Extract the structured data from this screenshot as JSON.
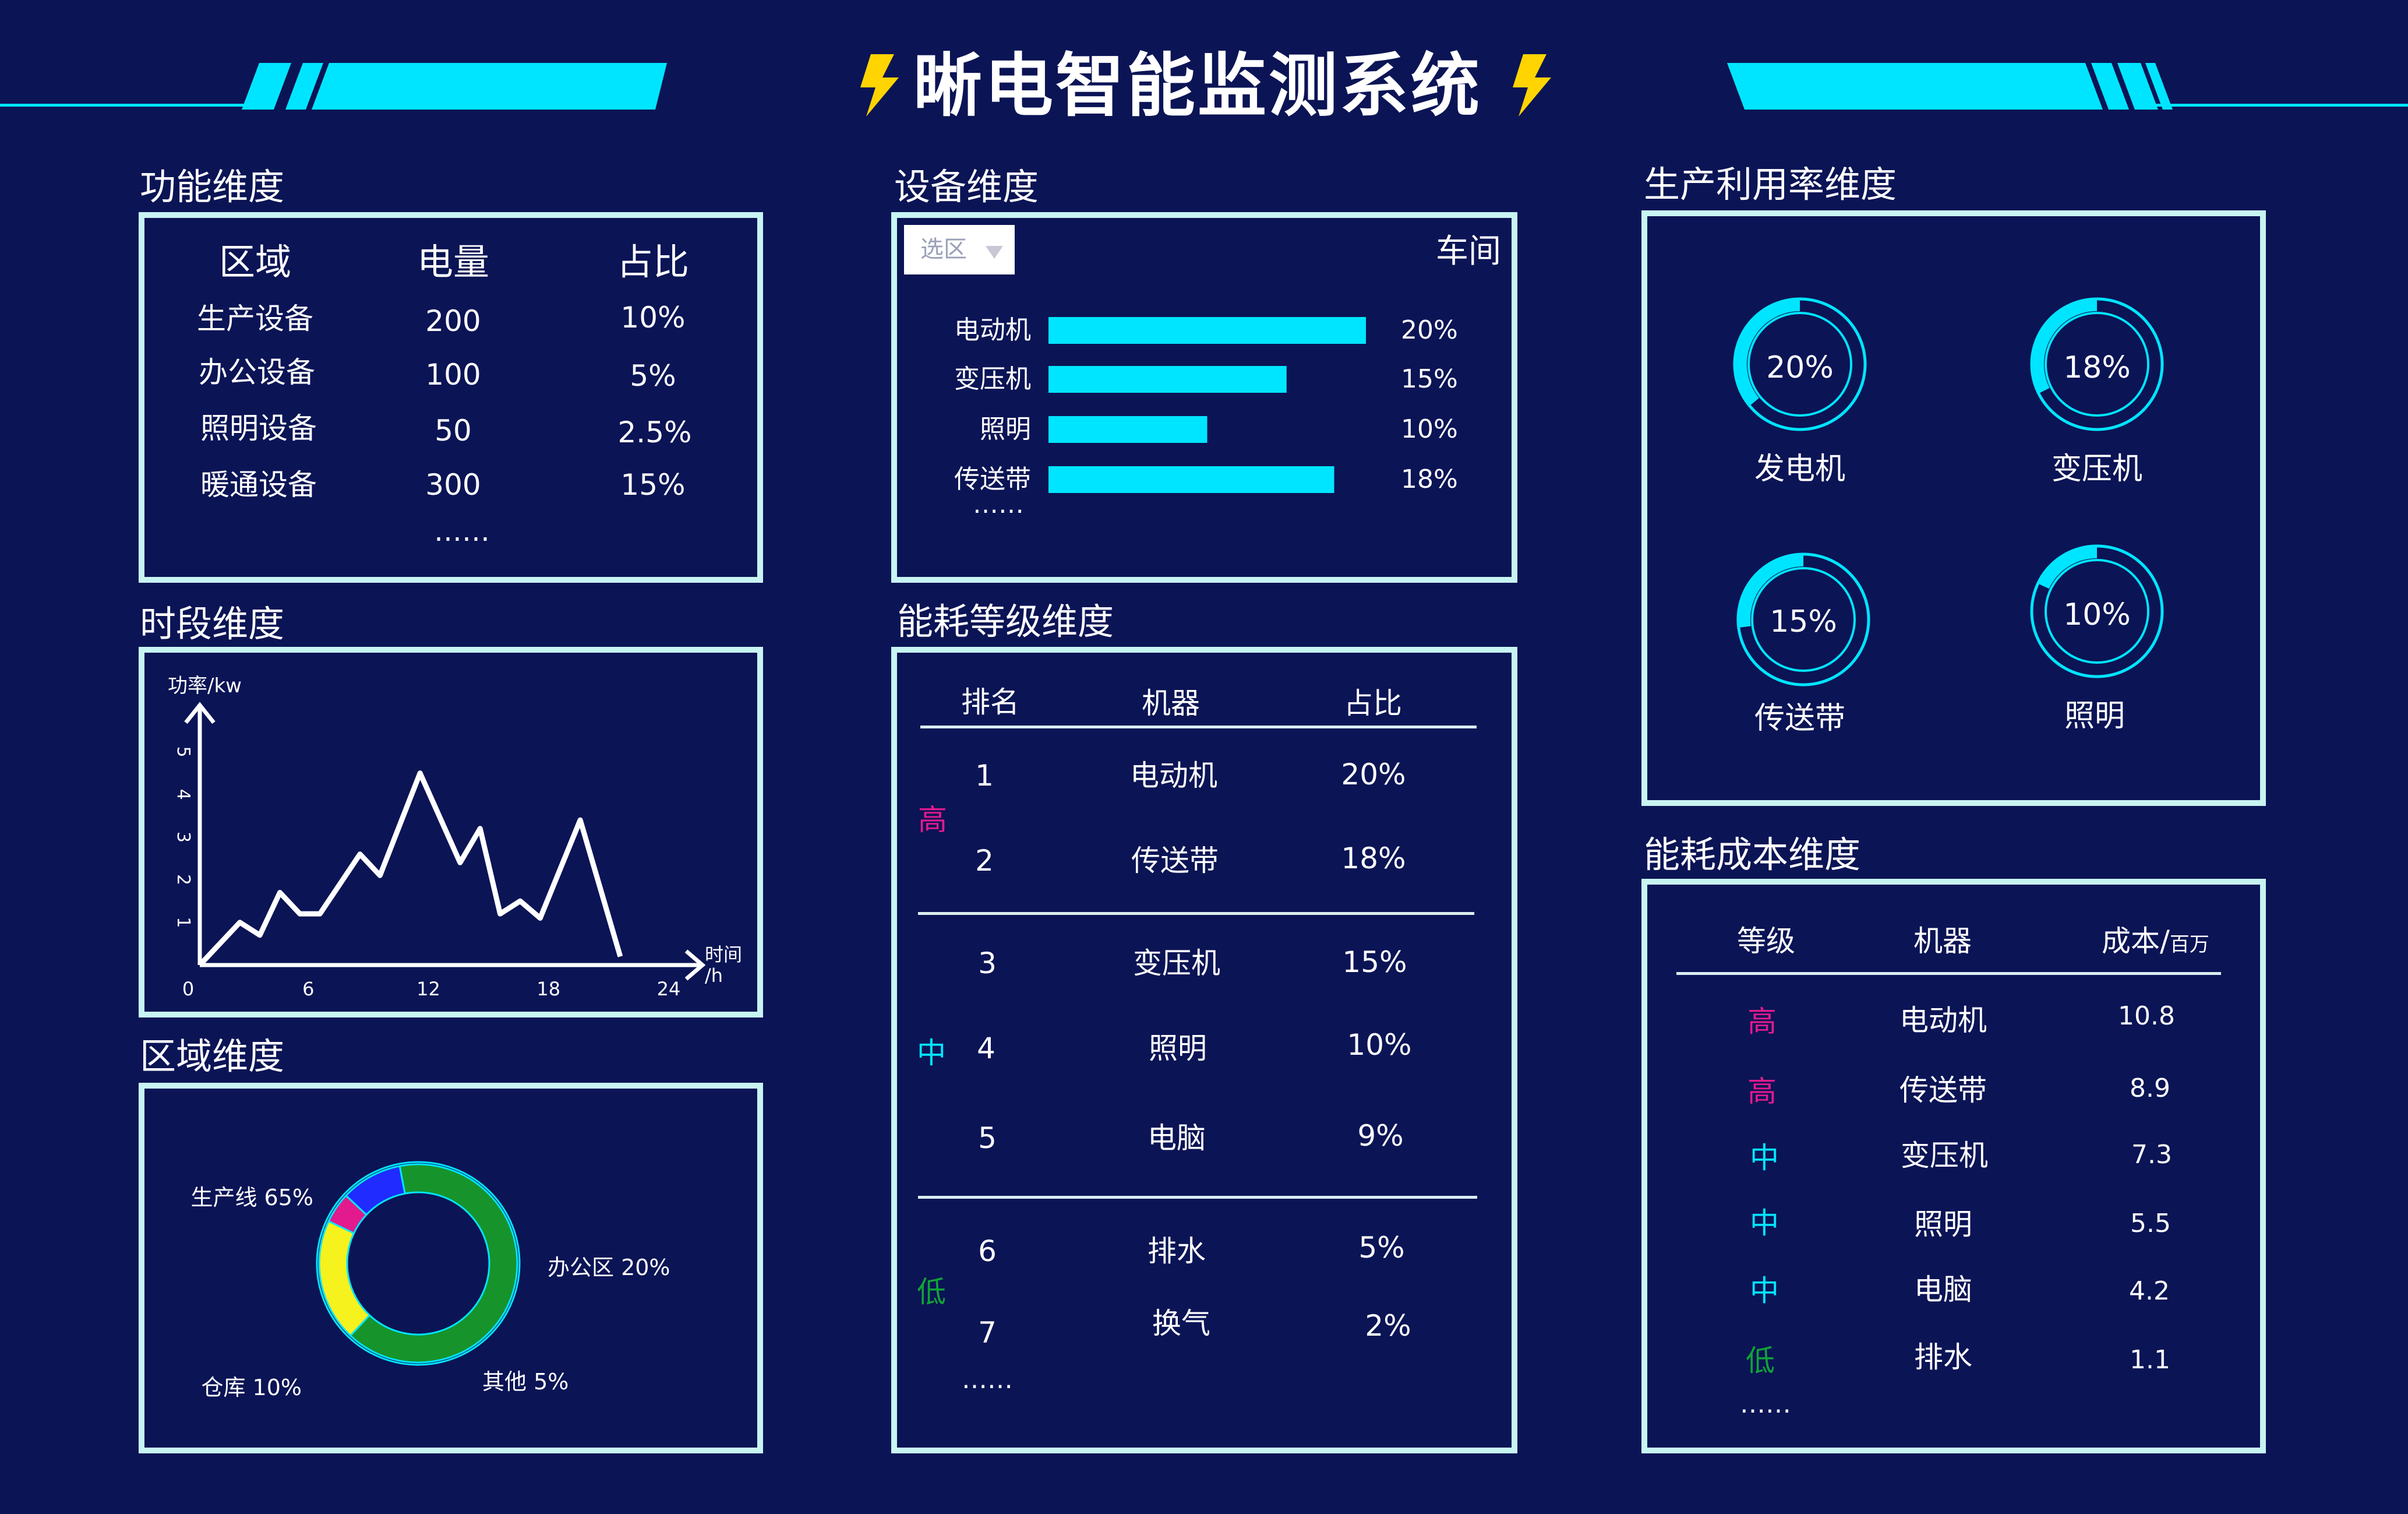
{
  "header": {
    "title": "晰电智能监测系统",
    "accent_color": "#00e5ff",
    "bolt_color": "#ffd400"
  },
  "function_dim": {
    "title": "功能维度",
    "headers": [
      "区域",
      "电量",
      "占比"
    ],
    "rows": [
      [
        "生产设备",
        "200",
        "10%"
      ],
      [
        "办公设备",
        "100",
        "5%"
      ],
      [
        "照明设备",
        "50",
        "2.5%"
      ],
      [
        "暖通设备",
        "300",
        "15%"
      ]
    ],
    "ellipsis": "……"
  },
  "device_dim": {
    "title": "设备维度",
    "select_label": "选区",
    "workshop_label": "车间",
    "ellipsis": "……",
    "bar_color": "#00e5ff"
  },
  "time_dim": {
    "title": "时段维度",
    "ylabel": "功率/kw",
    "xlabel_line1": "时间",
    "xlabel_line2": "/h"
  },
  "region_dim": {
    "title": "区域维度"
  },
  "energy_level_dim": {
    "title": "能耗等级维度",
    "headers": [
      "排名",
      "机器",
      "占比"
    ],
    "rows": [
      [
        "1",
        "电动机",
        "20%"
      ],
      [
        "2",
        "传送带",
        "18%"
      ],
      [
        "3",
        "变压机",
        "15%"
      ],
      [
        "4",
        "照明",
        "10%"
      ],
      [
        "5",
        "电脑",
        "9%"
      ],
      [
        "6",
        "排水",
        "5%"
      ],
      [
        "7",
        "换气",
        "2%"
      ]
    ],
    "levels": [
      "高",
      "中",
      "低"
    ],
    "ellipsis": "……"
  },
  "utilization_dim": {
    "title": "生产利用率维度",
    "gauges": [
      {
        "label": "发电机",
        "value": "20%",
        "fraction": 0.2
      },
      {
        "label": "变压机",
        "value": "18%",
        "fraction": 0.18
      },
      {
        "label": "传送带",
        "value": "15%",
        "fraction": 0.15
      },
      {
        "label": "照明",
        "value": "10%",
        "fraction": 0.1
      }
    ]
  },
  "cost_dim": {
    "title": "能耗成本维度",
    "headers": [
      "等级",
      "机器",
      "成本/"
    ],
    "unit_small": "百万",
    "rows": [
      [
        "高",
        "电动机",
        "10.8"
      ],
      [
        "高",
        "传送带",
        "8.9"
      ],
      [
        "中",
        "变压机",
        "7.3"
      ],
      [
        "中",
        "照明",
        "5.5"
      ],
      [
        "中",
        "电脑",
        "4.2"
      ],
      [
        "低",
        "排水",
        "1.1"
      ]
    ],
    "ellipsis": "……",
    "level_colors": {
      "高": "#e21a8e",
      "中": "#00e5ff",
      "低": "#10a337"
    }
  },
  "chart_data": [
    {
      "type": "bar",
      "orientation": "horizontal",
      "categories": [
        "电动机",
        "变压机",
        "照明",
        "传送带"
      ],
      "values": [
        20,
        15,
        10,
        18
      ],
      "value_labels": [
        "20%",
        "15%",
        "10%",
        "18%"
      ],
      "xlim": [
        0,
        20
      ]
    },
    {
      "type": "line",
      "x": [
        0,
        2,
        3,
        4,
        5,
        6,
        8,
        9,
        11,
        13,
        14,
        15,
        16,
        17,
        19,
        21
      ],
      "y": [
        0,
        1.0,
        0.7,
        1.7,
        1.2,
        1.2,
        2.6,
        2.1,
        4.5,
        2.4,
        3.2,
        1.2,
        1.5,
        1.1,
        3.4,
        0.2
      ],
      "xticks": [
        "0",
        "6",
        "12",
        "18",
        "24"
      ],
      "yticks": [
        "1",
        "2",
        "3",
        "4",
        "5"
      ],
      "xlim": [
        0,
        24
      ],
      "ylim": [
        0,
        5
      ],
      "ylabel": "功率/kw",
      "xlabel": "时间/h"
    },
    {
      "type": "pie",
      "style": "donut",
      "slices": [
        {
          "label": "生产线",
          "value": 65,
          "text": "65%",
          "color": "#17932b"
        },
        {
          "label": "办公区",
          "value": 20,
          "text": "20%",
          "color": "#f5f21e"
        },
        {
          "label": "其他",
          "value": 5,
          "text": "5%",
          "color": "#e21a8e"
        },
        {
          "label": "仓库",
          "value": 10,
          "text": "10%",
          "color": "#1f2bff"
        }
      ]
    }
  ]
}
